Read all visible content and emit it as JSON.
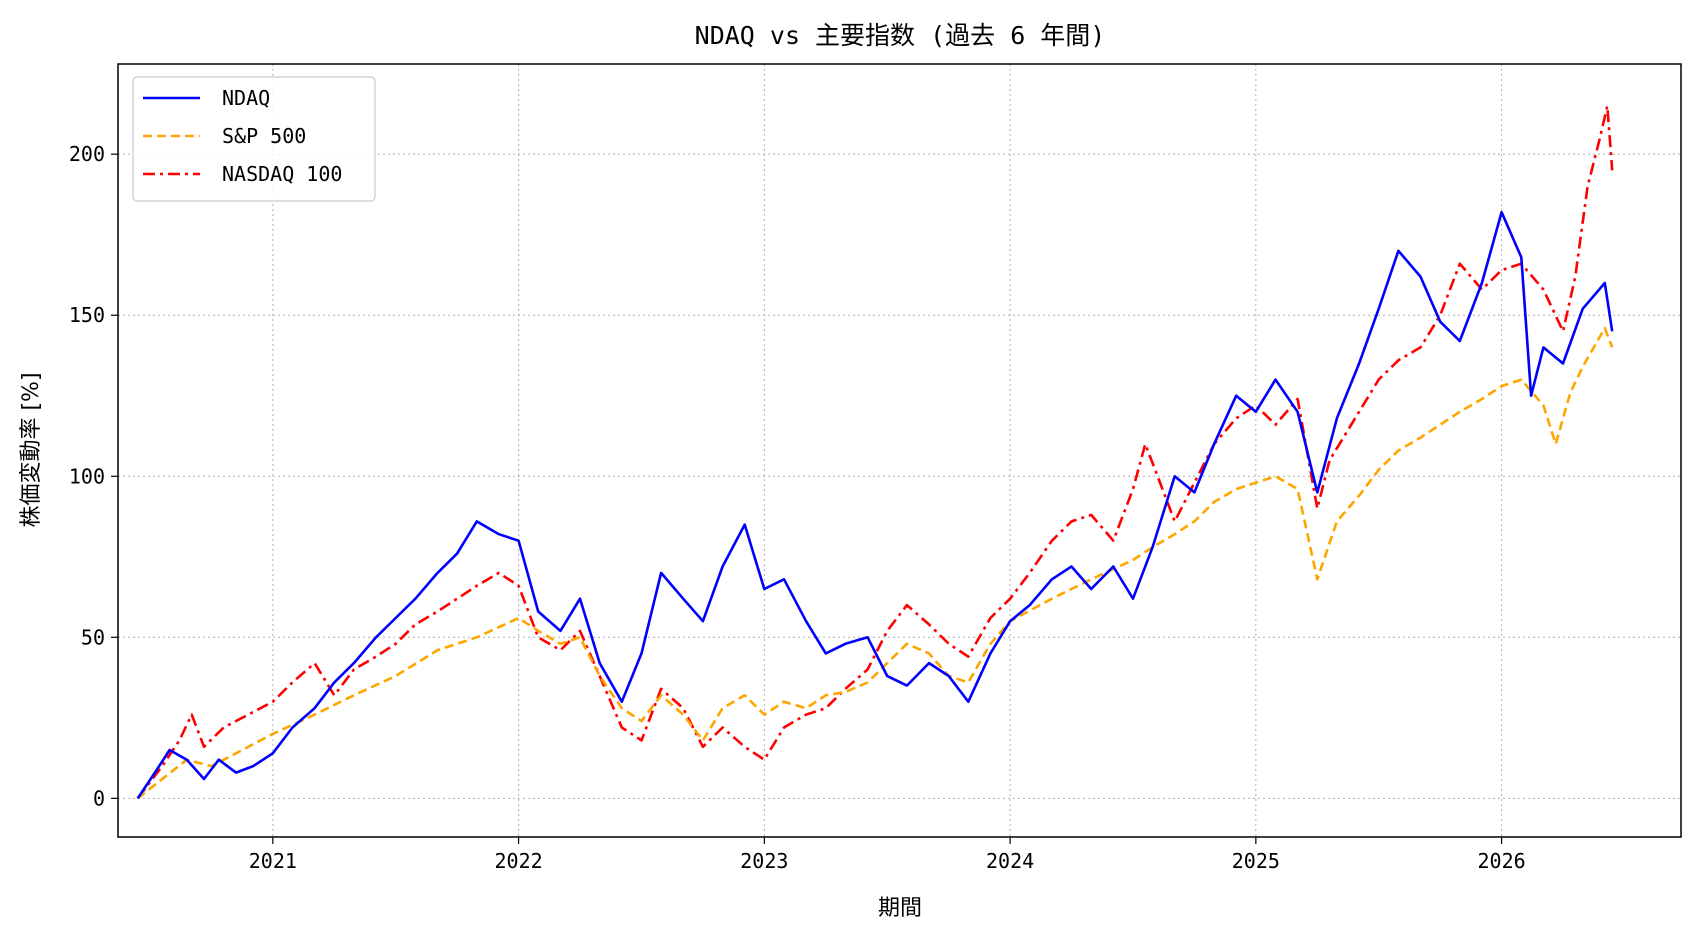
{
  "chart_data": {
    "type": "line",
    "title": "NDAQ vs 主要指数 (過去 6 年間)",
    "xlabel": "期間",
    "ylabel": "株価変動率 [%]",
    "xlim": [
      2020.37,
      2026.73
    ],
    "ylim": [
      -12,
      228
    ],
    "xticks": [
      2021,
      2022,
      2023,
      2024,
      2025,
      2026
    ],
    "xtick_labels": [
      "2021",
      "2022",
      "2023",
      "2024",
      "2025",
      "2026"
    ],
    "yticks": [
      0,
      50,
      100,
      150,
      200
    ],
    "ytick_labels": [
      "0",
      "50",
      "100",
      "150",
      "200"
    ],
    "grid": true,
    "legend_position": "upper-left",
    "series": [
      {
        "name": "NDAQ",
        "color": "#0000ff",
        "style": "solid",
        "points": [
          [
            2020.45,
            0
          ],
          [
            2020.52,
            8
          ],
          [
            2020.58,
            15
          ],
          [
            2020.65,
            12
          ],
          [
            2020.72,
            6
          ],
          [
            2020.78,
            12
          ],
          [
            2020.85,
            8
          ],
          [
            2020.92,
            10
          ],
          [
            2021.0,
            14
          ],
          [
            2021.08,
            22
          ],
          [
            2021.17,
            28
          ],
          [
            2021.25,
            36
          ],
          [
            2021.33,
            42
          ],
          [
            2021.42,
            50
          ],
          [
            2021.5,
            56
          ],
          [
            2021.58,
            62
          ],
          [
            2021.67,
            70
          ],
          [
            2021.75,
            76
          ],
          [
            2021.83,
            86
          ],
          [
            2021.92,
            82
          ],
          [
            2022.0,
            80
          ],
          [
            2022.08,
            58
          ],
          [
            2022.17,
            52
          ],
          [
            2022.25,
            62
          ],
          [
            2022.33,
            42
          ],
          [
            2022.42,
            30
          ],
          [
            2022.5,
            45
          ],
          [
            2022.58,
            70
          ],
          [
            2022.67,
            62
          ],
          [
            2022.75,
            55
          ],
          [
            2022.83,
            72
          ],
          [
            2022.92,
            85
          ],
          [
            2023.0,
            65
          ],
          [
            2023.08,
            68
          ],
          [
            2023.17,
            55
          ],
          [
            2023.25,
            45
          ],
          [
            2023.33,
            48
          ],
          [
            2023.42,
            50
          ],
          [
            2023.5,
            38
          ],
          [
            2023.58,
            35
          ],
          [
            2023.67,
            42
          ],
          [
            2023.75,
            38
          ],
          [
            2023.83,
            30
          ],
          [
            2023.92,
            45
          ],
          [
            2024.0,
            55
          ],
          [
            2024.08,
            60
          ],
          [
            2024.17,
            68
          ],
          [
            2024.25,
            72
          ],
          [
            2024.33,
            65
          ],
          [
            2024.42,
            72
          ],
          [
            2024.5,
            62
          ],
          [
            2024.58,
            78
          ],
          [
            2024.67,
            100
          ],
          [
            2024.75,
            95
          ],
          [
            2024.83,
            110
          ],
          [
            2024.92,
            125
          ],
          [
            2025.0,
            120
          ],
          [
            2025.08,
            130
          ],
          [
            2025.17,
            120
          ],
          [
            2025.25,
            95
          ],
          [
            2025.33,
            118
          ],
          [
            2025.42,
            135
          ],
          [
            2025.5,
            152
          ],
          [
            2025.58,
            170
          ],
          [
            2025.67,
            162
          ],
          [
            2025.75,
            148
          ],
          [
            2025.83,
            142
          ],
          [
            2025.92,
            160
          ],
          [
            2026.0,
            182
          ],
          [
            2026.08,
            168
          ],
          [
            2026.12,
            125
          ],
          [
            2026.17,
            140
          ],
          [
            2026.25,
            135
          ],
          [
            2026.33,
            152
          ],
          [
            2026.42,
            160
          ],
          [
            2026.45,
            145
          ]
        ]
      },
      {
        "name": "S&P 500",
        "color": "#ffa500",
        "style": "dashed",
        "points": [
          [
            2020.45,
            0
          ],
          [
            2020.55,
            6
          ],
          [
            2020.65,
            12
          ],
          [
            2020.75,
            10
          ],
          [
            2020.85,
            14
          ],
          [
            2021.0,
            20
          ],
          [
            2021.17,
            26
          ],
          [
            2021.33,
            32
          ],
          [
            2021.5,
            38
          ],
          [
            2021.67,
            46
          ],
          [
            2021.83,
            50
          ],
          [
            2022.0,
            56
          ],
          [
            2022.08,
            52
          ],
          [
            2022.17,
            48
          ],
          [
            2022.25,
            50
          ],
          [
            2022.33,
            38
          ],
          [
            2022.42,
            28
          ],
          [
            2022.5,
            24
          ],
          [
            2022.58,
            32
          ],
          [
            2022.67,
            26
          ],
          [
            2022.75,
            18
          ],
          [
            2022.83,
            28
          ],
          [
            2022.92,
            32
          ],
          [
            2023.0,
            26
          ],
          [
            2023.08,
            30
          ],
          [
            2023.17,
            28
          ],
          [
            2023.25,
            32
          ],
          [
            2023.33,
            33
          ],
          [
            2023.42,
            36
          ],
          [
            2023.5,
            42
          ],
          [
            2023.58,
            48
          ],
          [
            2023.67,
            45
          ],
          [
            2023.75,
            38
          ],
          [
            2023.83,
            36
          ],
          [
            2023.92,
            48
          ],
          [
            2024.0,
            55
          ],
          [
            2024.17,
            62
          ],
          [
            2024.33,
            68
          ],
          [
            2024.5,
            74
          ],
          [
            2024.58,
            78
          ],
          [
            2024.67,
            82
          ],
          [
            2024.75,
            86
          ],
          [
            2024.83,
            92
          ],
          [
            2024.92,
            96
          ],
          [
            2025.0,
            98
          ],
          [
            2025.08,
            100
          ],
          [
            2025.17,
            96
          ],
          [
            2025.25,
            68
          ],
          [
            2025.33,
            86
          ],
          [
            2025.42,
            94
          ],
          [
            2025.5,
            102
          ],
          [
            2025.58,
            108
          ],
          [
            2025.67,
            112
          ],
          [
            2025.75,
            116
          ],
          [
            2025.83,
            120
          ],
          [
            2025.92,
            124
          ],
          [
            2026.0,
            128
          ],
          [
            2026.08,
            130
          ],
          [
            2026.17,
            122
          ],
          [
            2026.22,
            110
          ],
          [
            2026.28,
            126
          ],
          [
            2026.33,
            134
          ],
          [
            2026.42,
            146
          ],
          [
            2026.45,
            140
          ]
        ]
      },
      {
        "name": "NASDAQ 100",
        "color": "#ff0000",
        "style": "dashdot",
        "points": [
          [
            2020.45,
            0
          ],
          [
            2020.55,
            10
          ],
          [
            2020.62,
            18
          ],
          [
            2020.67,
            26
          ],
          [
            2020.72,
            16
          ],
          [
            2020.8,
            22
          ],
          [
            2020.9,
            26
          ],
          [
            2021.0,
            30
          ],
          [
            2021.08,
            36
          ],
          [
            2021.17,
            42
          ],
          [
            2021.25,
            32
          ],
          [
            2021.33,
            40
          ],
          [
            2021.42,
            44
          ],
          [
            2021.5,
            48
          ],
          [
            2021.58,
            54
          ],
          [
            2021.67,
            58
          ],
          [
            2021.75,
            62
          ],
          [
            2021.83,
            66
          ],
          [
            2021.92,
            70
          ],
          [
            2022.0,
            66
          ],
          [
            2022.08,
            50
          ],
          [
            2022.17,
            46
          ],
          [
            2022.25,
            52
          ],
          [
            2022.33,
            38
          ],
          [
            2022.42,
            22
          ],
          [
            2022.5,
            18
          ],
          [
            2022.58,
            34
          ],
          [
            2022.67,
            28
          ],
          [
            2022.75,
            16
          ],
          [
            2022.83,
            22
          ],
          [
            2022.92,
            16
          ],
          [
            2023.0,
            12
          ],
          [
            2023.08,
            22
          ],
          [
            2023.17,
            26
          ],
          [
            2023.25,
            28
          ],
          [
            2023.33,
            34
          ],
          [
            2023.42,
            40
          ],
          [
            2023.5,
            52
          ],
          [
            2023.58,
            60
          ],
          [
            2023.67,
            54
          ],
          [
            2023.75,
            48
          ],
          [
            2023.83,
            44
          ],
          [
            2023.92,
            56
          ],
          [
            2024.0,
            62
          ],
          [
            2024.08,
            70
          ],
          [
            2024.17,
            80
          ],
          [
            2024.25,
            86
          ],
          [
            2024.33,
            88
          ],
          [
            2024.42,
            80
          ],
          [
            2024.5,
            96
          ],
          [
            2024.55,
            110
          ],
          [
            2024.62,
            96
          ],
          [
            2024.67,
            86
          ],
          [
            2024.75,
            98
          ],
          [
            2024.83,
            110
          ],
          [
            2024.92,
            118
          ],
          [
            2025.0,
            122
          ],
          [
            2025.08,
            116
          ],
          [
            2025.17,
            124
          ],
          [
            2025.25,
            90
          ],
          [
            2025.3,
            105
          ],
          [
            2025.42,
            120
          ],
          [
            2025.5,
            130
          ],
          [
            2025.58,
            136
          ],
          [
            2025.67,
            140
          ],
          [
            2025.75,
            150
          ],
          [
            2025.83,
            166
          ],
          [
            2025.92,
            158
          ],
          [
            2026.0,
            164
          ],
          [
            2026.08,
            166
          ],
          [
            2026.17,
            158
          ],
          [
            2026.25,
            145
          ],
          [
            2026.3,
            162
          ],
          [
            2026.35,
            190
          ],
          [
            2026.4,
            205
          ],
          [
            2026.43,
            215
          ],
          [
            2026.45,
            195
          ]
        ]
      }
    ]
  }
}
